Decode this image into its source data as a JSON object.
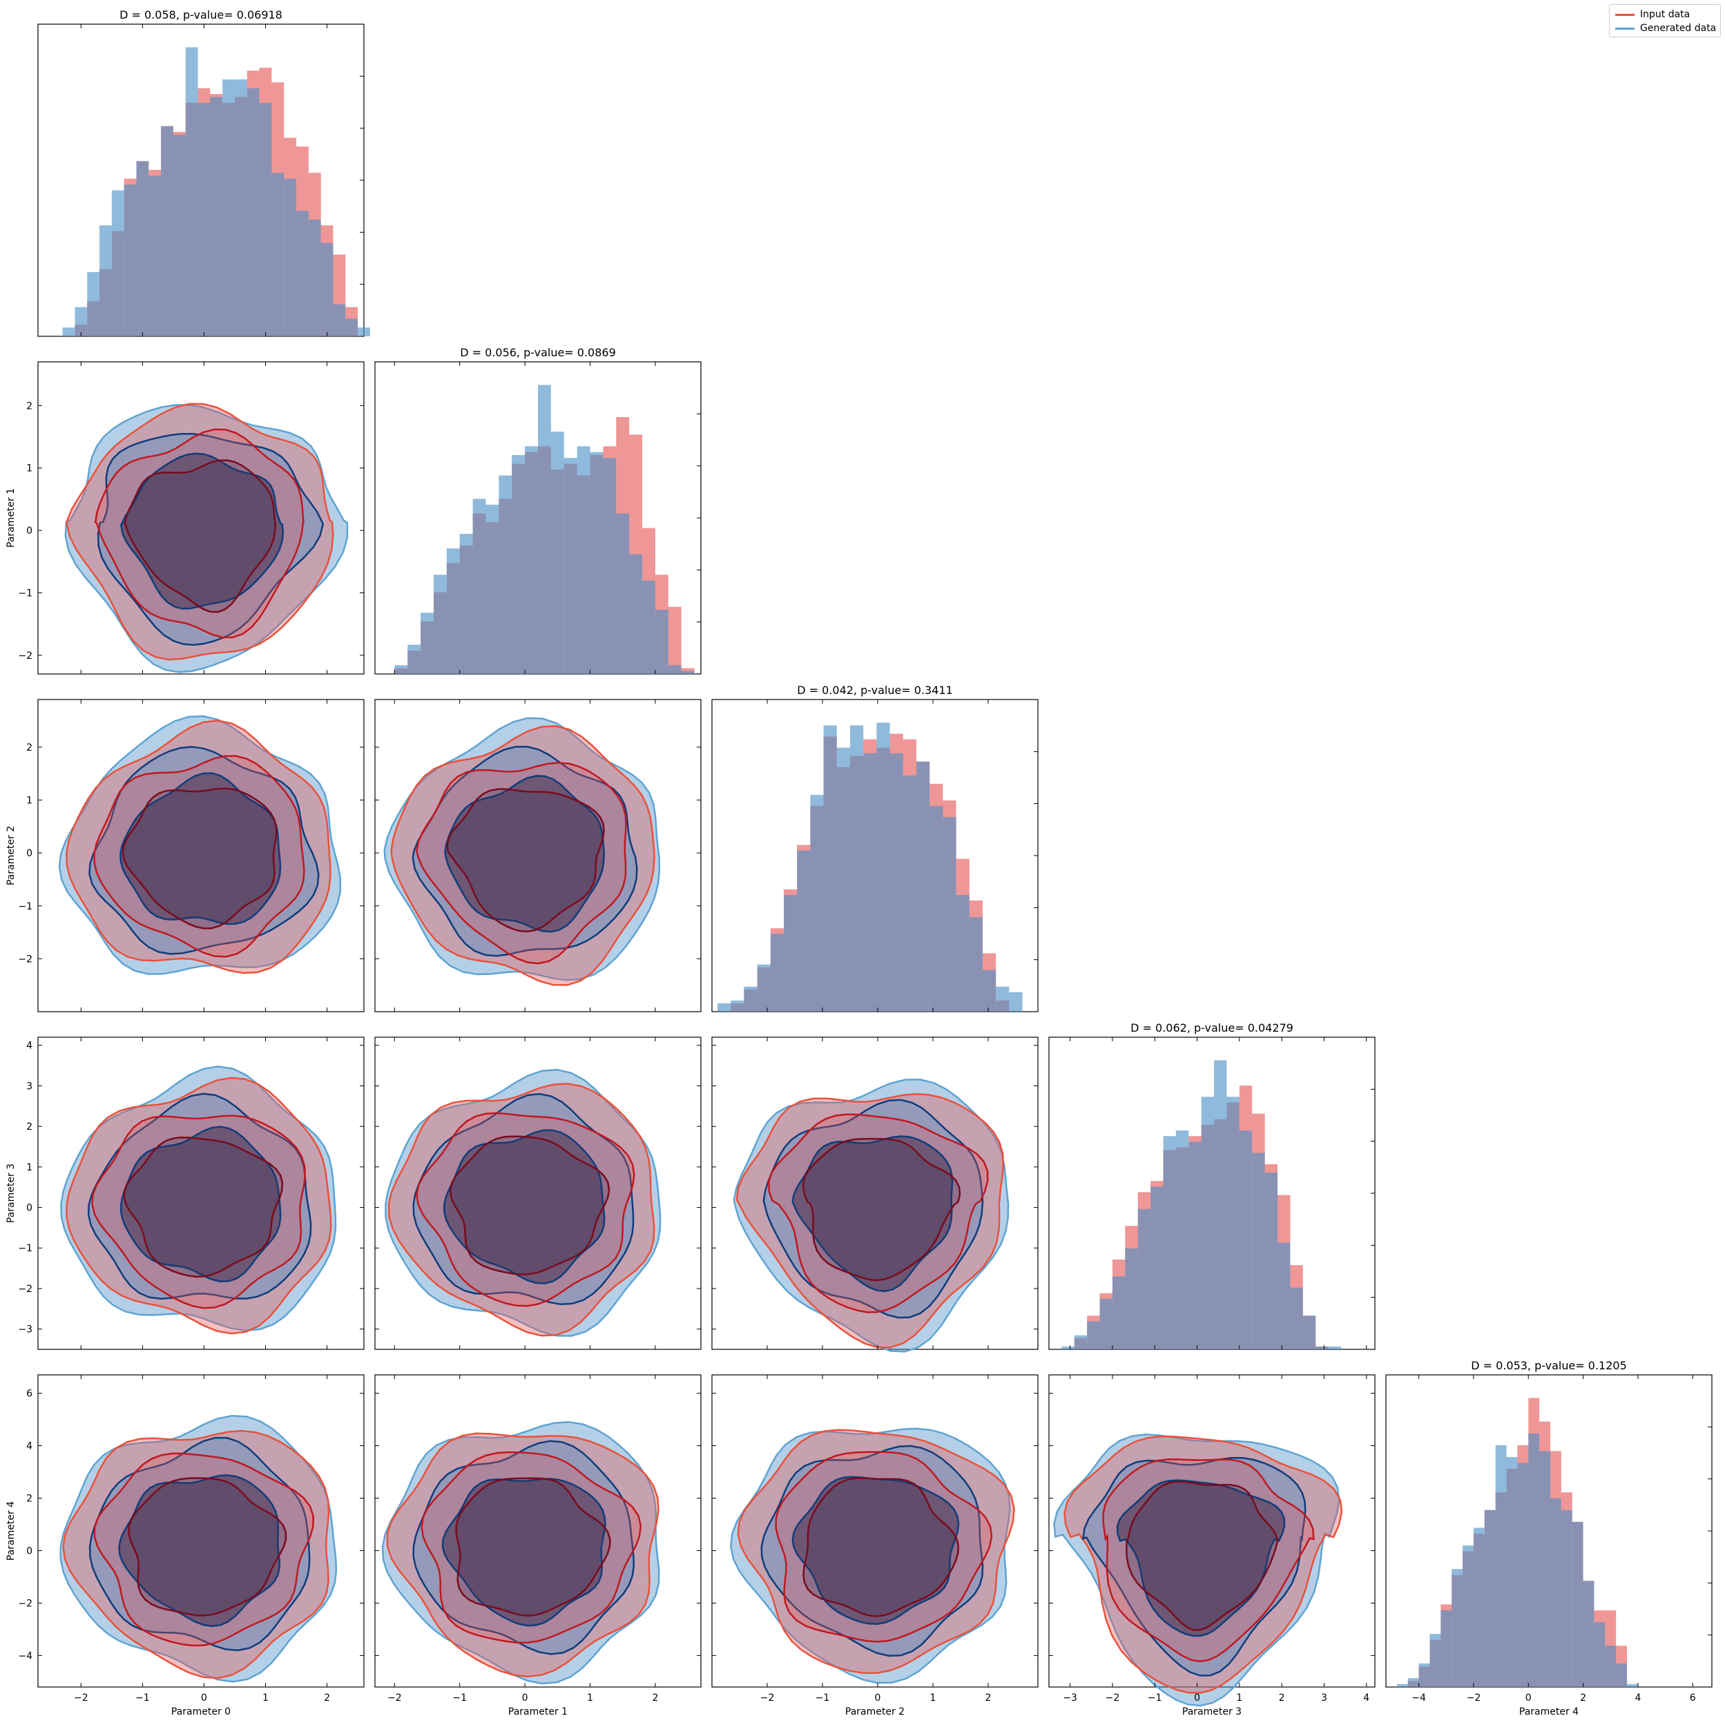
{
  "legend": {
    "items": [
      {
        "label": "Input data",
        "color": "#e8523a"
      },
      {
        "label": "Generated data",
        "color": "#5ea3d2"
      }
    ]
  },
  "colors": {
    "input_fill": "#e45756",
    "generated_fill": "#4c8fc7",
    "input_line": "#e8523a",
    "generated_line": "#5ea3d2",
    "input_dark": "#7a0b1c",
    "generated_dark": "#0e3c7a"
  },
  "chart_data": {
    "type": "corner",
    "parameters": [
      "Parameter 0",
      "Parameter 1",
      "Parameter 2",
      "Parameter 3",
      "Parameter 4"
    ],
    "ranges": [
      [
        -2.7,
        2.6
      ],
      [
        -2.3,
        2.7
      ],
      [
        -3.0,
        2.9
      ],
      [
        -3.5,
        4.2
      ],
      [
        -5.2,
        6.7
      ]
    ],
    "tick_labels": [
      [
        -2,
        -1,
        0,
        1,
        2
      ],
      [
        -2,
        -1,
        0,
        1,
        2
      ],
      [
        -2,
        -1,
        0,
        1,
        2
      ],
      [
        -3,
        -2,
        -1,
        0,
        1,
        2,
        3,
        4
      ],
      [
        -4,
        -2,
        0,
        2,
        4,
        6
      ]
    ],
    "diagonal_titles": [
      "D = 0.058, p-value= 0.06918",
      "D = 0.056, p-value= 0.0869",
      "D = 0.042, p-value= 0.3411",
      "D = 0.062, p-value= 0.04279",
      "D = 0.053, p-value= 0.1205"
    ],
    "diagonal_histograms": [
      {
        "edges_from": -2.3,
        "bin_width": 0.2,
        "input": [
          0,
          4,
          12,
          23,
          36,
          54,
          60,
          57,
          72,
          70,
          80,
          85,
          83,
          80,
          82,
          91,
          92,
          87,
          68,
          65,
          56,
          38,
          28,
          10,
          0
        ],
        "generated": [
          3,
          10,
          22,
          38,
          50,
          52,
          60,
          55,
          72,
          69,
          99,
          80,
          82,
          88,
          88,
          85,
          80,
          56,
          54,
          43,
          40,
          32,
          11,
          6,
          3
        ]
      },
      {
        "edges_from": -2.0,
        "bin_width": 0.2,
        "input": [
          2,
          8,
          18,
          28,
          38,
          44,
          55,
          52,
          60,
          72,
          76,
          78,
          70,
          72,
          68,
          75,
          78,
          88,
          82,
          50,
          34,
          23,
          2
        ],
        "generated": [
          3,
          10,
          21,
          34,
          43,
          48,
          60,
          58,
          68,
          75,
          78,
          99,
          83,
          74,
          78,
          76,
          74,
          55,
          41,
          32,
          22,
          3,
          1
        ]
      },
      {
        "edges_from": -2.9,
        "bin_width": 0.24,
        "input": [
          0,
          3,
          8,
          16,
          30,
          44,
          60,
          74,
          99,
          88,
          92,
          98,
          95,
          100,
          98,
          90,
          82,
          76,
          55,
          40,
          21,
          4,
          0
        ],
        "generated": [
          3,
          4,
          9,
          17,
          28,
          42,
          58,
          78,
          103,
          95,
          103,
          93,
          104,
          93,
          85,
          90,
          74,
          70,
          42,
          34,
          15,
          9,
          7
        ]
      },
      {
        "edges_from": -3.2,
        "bin_width": 0.3,
        "input": [
          0,
          4,
          12,
          20,
          32,
          44,
          56,
          60,
          71,
          72,
          76,
          80,
          82,
          88,
          94,
          84,
          66,
          55,
          30,
          12,
          1,
          0
        ],
        "generated": [
          1,
          5,
          10,
          18,
          26,
          36,
          50,
          58,
          76,
          78,
          74,
          90,
          103,
          90,
          78,
          70,
          63,
          38,
          22,
          12,
          1,
          1
        ]
      },
      {
        "edges_from": -4.8,
        "bin_width": 0.4,
        "input": [
          0,
          2,
          7,
          16,
          28,
          38,
          46,
          52,
          60,
          66,
          74,
          82,
          98,
          90,
          80,
          66,
          56,
          36,
          26,
          26,
          14,
          0
        ],
        "generated": [
          1,
          3,
          8,
          18,
          26,
          40,
          48,
          54,
          60,
          82,
          78,
          76,
          86,
          80,
          64,
          60,
          56,
          36,
          22,
          14,
          8,
          1
        ]
      }
    ],
    "offdiagonal": {
      "type": "contour",
      "description_levels": 3,
      "pairs": [
        {
          "x": 0,
          "y": 1,
          "skew": 0.6
        },
        {
          "x": 0,
          "y": 2,
          "skew": 0.0
        },
        {
          "x": 1,
          "y": 2,
          "skew": 0.25
        },
        {
          "x": 0,
          "y": 3,
          "skew": 0.0
        },
        {
          "x": 1,
          "y": 3,
          "skew": 0.0
        },
        {
          "x": 2,
          "y": 3,
          "skew": 0.4
        },
        {
          "x": 0,
          "y": 4,
          "skew": 0.0
        },
        {
          "x": 1,
          "y": 4,
          "skew": 0.0
        },
        {
          "x": 2,
          "y": 4,
          "skew": 0.0
        },
        {
          "x": 3,
          "y": 4,
          "skew": 0.8
        }
      ]
    }
  }
}
